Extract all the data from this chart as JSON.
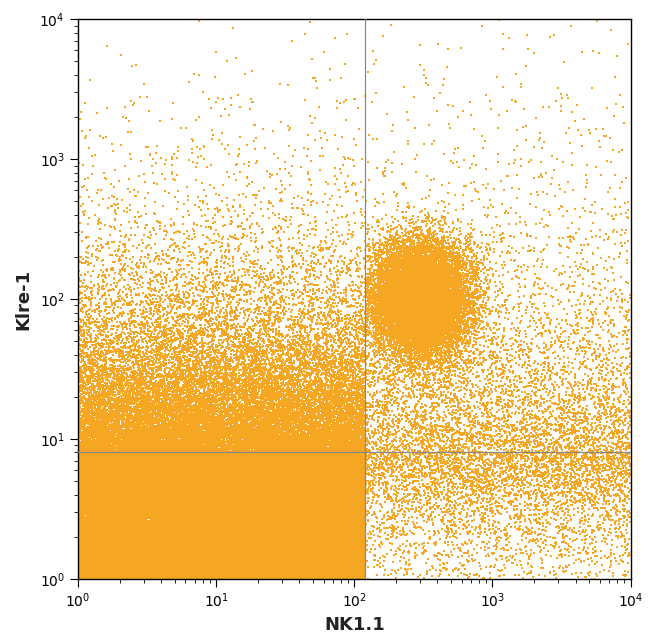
{
  "xlabel": "NK1.1",
  "ylabel": "Klre-1",
  "xlim": [
    1,
    10000
  ],
  "ylim": [
    1,
    10000
  ],
  "dot_color": "#F5A623",
  "dot_size": 3,
  "vline_x": 120,
  "hline_y": 8,
  "line_color": "#888888",
  "background_color": "#ffffff",
  "seed": 42,
  "xlabel_fontsize": 13,
  "ylabel_fontsize": 13
}
